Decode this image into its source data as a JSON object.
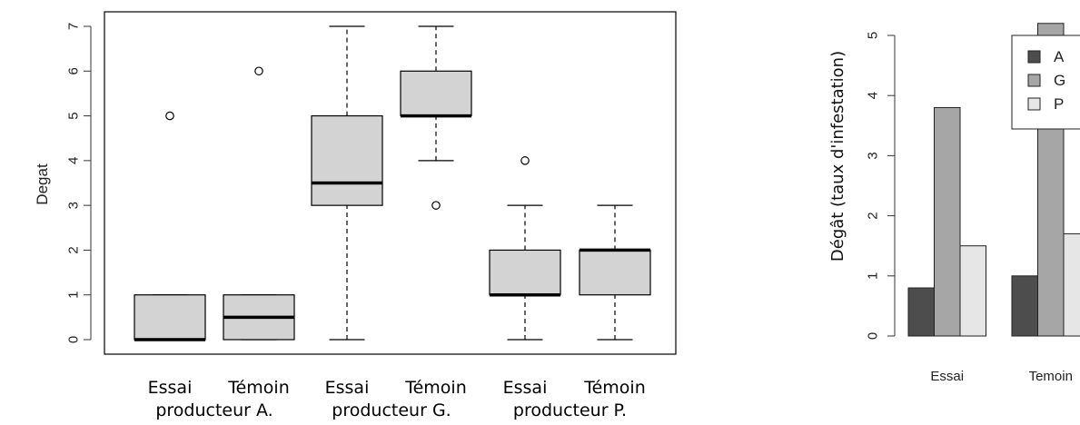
{
  "chart_data": [
    {
      "type": "box",
      "ylabel": "Degat",
      "ylim": [
        0,
        7
      ],
      "yticks": [
        "0",
        "1",
        "2",
        "3",
        "4",
        "5",
        "6",
        "7"
      ],
      "boxes": [
        {
          "label": "Essai",
          "group": "producteur A.",
          "min": 0,
          "q1": 0,
          "median": 0,
          "q3": 1,
          "max": 1,
          "outliers": [
            5
          ]
        },
        {
          "label": "Témoin",
          "group": "producteur A.",
          "min": 0,
          "q1": 0,
          "median": 0.5,
          "q3": 1,
          "max": 1,
          "outliers": [
            6
          ]
        },
        {
          "label": "Essai",
          "group": "producteur G.",
          "min": 0,
          "q1": 3,
          "median": 3.5,
          "q3": 5,
          "max": 7,
          "outliers": []
        },
        {
          "label": "Témoin",
          "group": "producteur G.",
          "min": 4,
          "q1": 5,
          "median": 5,
          "q3": 6,
          "max": 7,
          "outliers": [
            3
          ]
        },
        {
          "label": "Essai",
          "group": "producteur P.",
          "min": 0,
          "q1": 1,
          "median": 1,
          "q3": 2,
          "max": 3,
          "outliers": [
            4
          ]
        },
        {
          "label": "Témoin",
          "group": "producteur P.",
          "min": 0,
          "q1": 1,
          "median": 2,
          "q3": 2,
          "max": 3,
          "outliers": []
        }
      ],
      "groups": [
        "producteur A.",
        "producteur G.",
        "producteur P."
      ],
      "box_fill": "#d3d3d3",
      "grid": false
    },
    {
      "type": "bar",
      "ylabel": "Dégât (taux d'infestation)",
      "ylim": [
        0,
        5
      ],
      "yticks": [
        "0",
        "1",
        "2",
        "3",
        "4",
        "5"
      ],
      "categories": [
        "Essai",
        "Temoin"
      ],
      "series": [
        {
          "name": "A",
          "values": [
            0.8,
            1.0
          ],
          "color": "#4d4d4d"
        },
        {
          "name": "G",
          "values": [
            3.8,
            5.2
          ],
          "color": "#a6a6a6"
        },
        {
          "name": "P",
          "values": [
            1.5,
            1.7
          ],
          "color": "#e6e6e6"
        }
      ],
      "legend_position": "top-right",
      "grid": false
    }
  ]
}
